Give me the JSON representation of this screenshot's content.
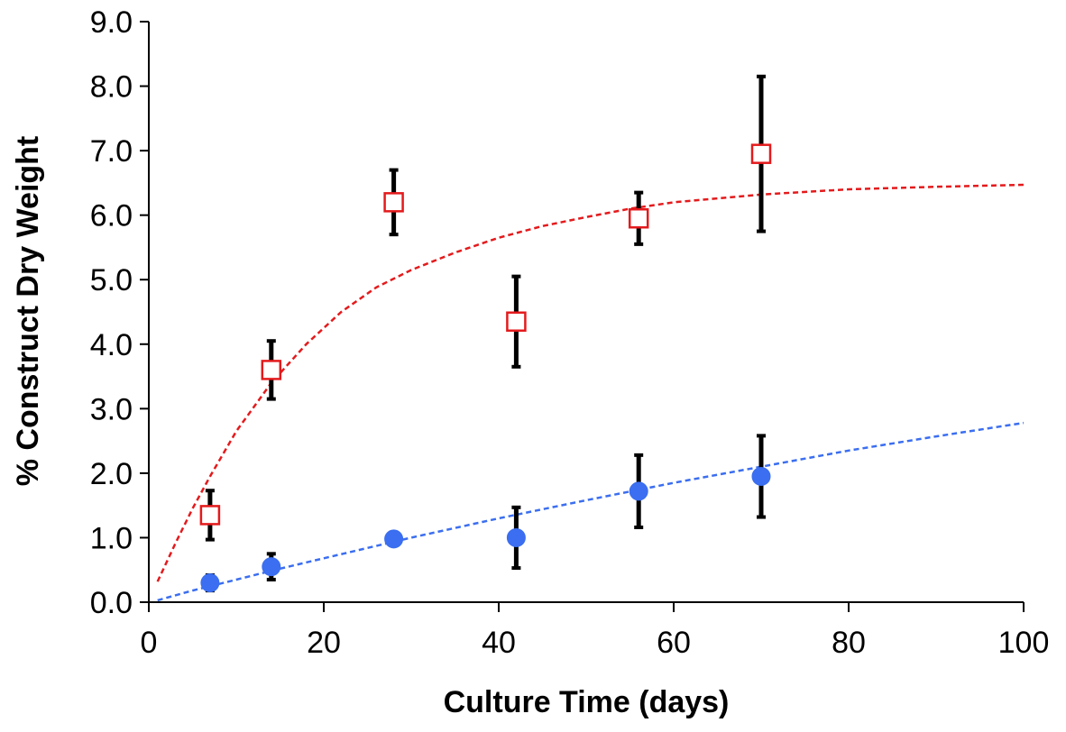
{
  "chart_data": {
    "type": "scatter",
    "title": "",
    "xlabel": "Culture Time (days)",
    "ylabel": "% Construct Dry Weight",
    "xlim": [
      0,
      100
    ],
    "ylim": [
      0,
      9
    ],
    "x_ticks": [
      0,
      20,
      40,
      60,
      80,
      100
    ],
    "x_tick_labels": [
      "0",
      "20",
      "40",
      "60",
      "80",
      "100"
    ],
    "y_ticks": [
      0,
      1,
      2,
      3,
      4,
      5,
      6,
      7,
      8,
      9
    ],
    "y_tick_labels": [
      "0.0",
      "1.0",
      "2.0",
      "3.0",
      "4.0",
      "5.0",
      "6.0",
      "7.0",
      "8.0",
      "9.0"
    ],
    "grid": false,
    "legend": "none",
    "series": [
      {
        "marker": "open-square",
        "color": "#e41a1c",
        "points": [
          {
            "x": 7,
            "y": 1.35,
            "err": 0.38
          },
          {
            "x": 14,
            "y": 3.6,
            "err": 0.45
          },
          {
            "x": 28,
            "y": 6.2,
            "err": 0.5
          },
          {
            "x": 42,
            "y": 4.35,
            "err": 0.7
          },
          {
            "x": 56,
            "y": 5.95,
            "err": 0.4
          },
          {
            "x": 70,
            "y": 6.95,
            "err": 1.2
          }
        ],
        "trend": {
          "style": "dashed",
          "color": "#e41a1c",
          "x": [
            1,
            3,
            5,
            7,
            10,
            14,
            18,
            22,
            26,
            30,
            35,
            40,
            45,
            50,
            55,
            60,
            70,
            80,
            90,
            100
          ],
          "y": [
            0.32,
            0.9,
            1.45,
            1.95,
            2.65,
            3.4,
            4.0,
            4.5,
            4.88,
            5.15,
            5.42,
            5.65,
            5.83,
            5.97,
            6.1,
            6.2,
            6.32,
            6.4,
            6.44,
            6.47
          ]
        }
      },
      {
        "marker": "filled-circle",
        "color": "#3b6ef0",
        "points": [
          {
            "x": 7,
            "y": 0.3,
            "err": 0.12
          },
          {
            "x": 14,
            "y": 0.55,
            "err": 0.2
          },
          {
            "x": 28,
            "y": 0.98,
            "err": 0.05
          },
          {
            "x": 42,
            "y": 1.0,
            "err": 0.47
          },
          {
            "x": 56,
            "y": 1.72,
            "err": 0.56
          },
          {
            "x": 70,
            "y": 1.95,
            "err": 0.63
          }
        ],
        "trend": {
          "style": "dashed",
          "color": "#3b6ef0",
          "x": [
            1,
            5,
            10,
            15,
            20,
            30,
            40,
            50,
            60,
            70,
            80,
            90,
            100
          ],
          "y": [
            0.03,
            0.18,
            0.35,
            0.52,
            0.68,
            1.0,
            1.3,
            1.58,
            1.85,
            2.1,
            2.35,
            2.57,
            2.78
          ]
        }
      }
    ]
  }
}
